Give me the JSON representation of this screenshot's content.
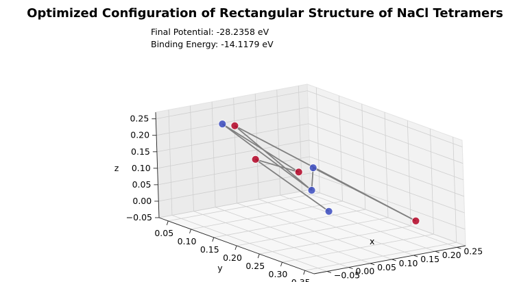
{
  "chart_data": {
    "type": "scatter",
    "projection": "3d",
    "title": "Optimized Configuration of Rectangular Structure of NaCl Tetramers",
    "annotations": [
      "Final Potential: -28.2358 eV",
      "Binding Energy: -14.1179 eV"
    ],
    "xlabel": "x",
    "ylabel": "y",
    "zlabel": "z",
    "xlim": [
      -0.08,
      0.27
    ],
    "ylim": [
      0.03,
      0.37
    ],
    "zlim": [
      -0.05,
      0.27
    ],
    "xticks": [
      "−0.05",
      "0.00",
      "0.05",
      "0.10",
      "0.15",
      "0.20",
      "0.25"
    ],
    "yticks": [
      "0.05",
      "0.10",
      "0.15",
      "0.20",
      "0.25",
      "0.30",
      "0.35"
    ],
    "zticks": [
      "−0.05",
      "0.00",
      "0.05",
      "0.10",
      "0.15",
      "0.20",
      "0.25"
    ],
    "xtick_values": [
      -0.05,
      0.0,
      0.05,
      0.1,
      0.15,
      0.2,
      0.25
    ],
    "ytick_values": [
      0.05,
      0.1,
      0.15,
      0.2,
      0.25,
      0.3,
      0.35
    ],
    "ztick_values": [
      -0.05,
      0.0,
      0.05,
      0.1,
      0.15,
      0.2,
      0.25
    ],
    "colors": {
      "red": "#b40426",
      "blue": "#3b4cc0",
      "bond": "#808080"
    },
    "atoms": [
      {
        "x": 0.0,
        "y": 0.1,
        "z": 0.25,
        "color": "blue"
      },
      {
        "x": 0.08,
        "y": 0.05,
        "z": 0.2,
        "color": "red"
      },
      {
        "x": -0.03,
        "y": 0.2,
        "z": 0.2,
        "color": "red"
      },
      {
        "x": 0.05,
        "y": 0.25,
        "z": 0.18,
        "color": "blue"
      },
      {
        "x": 0.0,
        "y": 0.33,
        "z": 0.1,
        "color": "blue"
      },
      {
        "x": 0.12,
        "y": 0.15,
        "z": 0.1,
        "color": "red"
      },
      {
        "x": 0.2,
        "y": 0.1,
        "z": 0.0,
        "color": "blue"
      },
      {
        "x": 0.23,
        "y": 0.3,
        "z": 0.0,
        "color": "red"
      }
    ],
    "bonds": [
      [
        0,
        5
      ],
      [
        0,
        6
      ],
      [
        1,
        6
      ],
      [
        1,
        7
      ],
      [
        2,
        4
      ],
      [
        2,
        5
      ],
      [
        3,
        6
      ],
      [
        3,
        7
      ]
    ]
  }
}
